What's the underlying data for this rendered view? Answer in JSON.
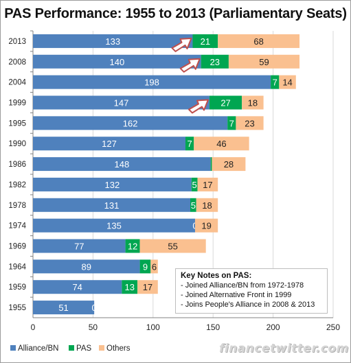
{
  "chart_data": {
    "type": "bar",
    "orientation": "horizontal",
    "stacked": true,
    "title": "PAS Performance: 1955 to 2013 (Parliamentary Seats)",
    "categories": [
      "2013",
      "2008",
      "2004",
      "1999",
      "1995",
      "1990",
      "1986",
      "1982",
      "1978",
      "1974",
      "1969",
      "1964",
      "1959",
      "1955"
    ],
    "series": [
      {
        "name": "Alliance/BN",
        "color": "#4f81bd",
        "values": [
          133,
          140,
          198,
          147,
          162,
          127,
          148,
          132,
          131,
          135,
          77,
          89,
          74,
          51
        ]
      },
      {
        "name": "PAS",
        "color": "#00a651",
        "values": [
          21,
          23,
          7,
          27,
          7,
          7,
          1,
          5,
          5,
          0,
          12,
          9,
          13,
          0
        ]
      },
      {
        "name": "Others",
        "color": "#fac090",
        "values": [
          68,
          59,
          14,
          18,
          23,
          46,
          28,
          17,
          18,
          19,
          55,
          6,
          17,
          0
        ]
      }
    ],
    "value_labels": [
      [
        "133",
        "21",
        "68"
      ],
      [
        "140",
        "23",
        "59"
      ],
      [
        "198",
        "7",
        "14"
      ],
      [
        "147",
        "27",
        "18"
      ],
      [
        "162",
        "7",
        "23"
      ],
      [
        "127",
        "7",
        "46"
      ],
      [
        "148",
        "",
        "28"
      ],
      [
        "132",
        "5",
        "17"
      ],
      [
        "131",
        "5",
        "18"
      ],
      [
        "135",
        "0",
        "19"
      ],
      [
        "77",
        "12",
        "55"
      ],
      [
        "89",
        "9",
        "6"
      ],
      [
        "74",
        "13",
        "17"
      ],
      [
        "51",
        "0",
        ""
      ]
    ],
    "highlighted_years": [
      "2013",
      "2008",
      "1999"
    ],
    "xlim": [
      0,
      250
    ],
    "xticks": [
      "0",
      "50",
      "100",
      "150",
      "200",
      "250"
    ],
    "grid": true,
    "legend_position": "bottom-left"
  },
  "key_notes": {
    "heading": "Key Notes on PAS:",
    "lines": [
      "- Joined Alliance/BN  from 1972-1978",
      "- Joined  Alternative Front in 1999",
      "- Joins People's Alliance  in 2008 & 2013"
    ]
  },
  "legend": [
    "Alliance/BN",
    "PAS",
    "Others"
  ],
  "watermark": "financetwitter.com",
  "colors": {
    "arrow_fill": "#ffffff",
    "arrow_stroke": "#c0504d",
    "grid": "#d9d9d9"
  }
}
